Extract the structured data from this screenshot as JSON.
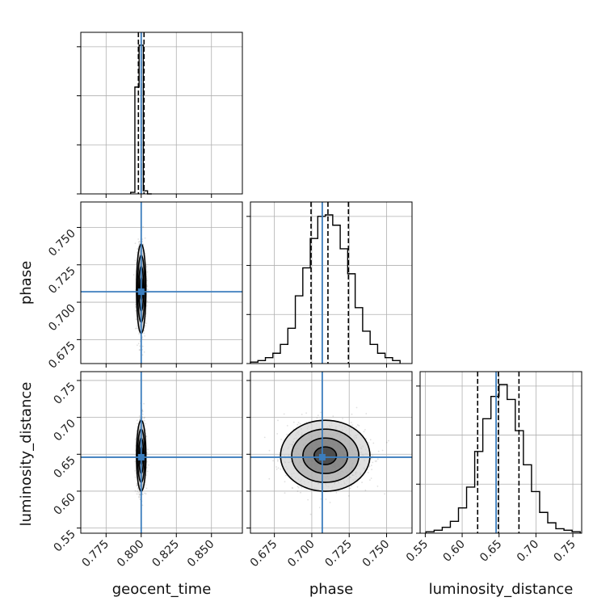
{
  "chart_data": {
    "type": "scatter",
    "parameters": [
      "geocent_time",
      "phase",
      "luminosity_distance"
    ],
    "axis_labels": {
      "geocent_time": "geocent_time",
      "phase": "phase",
      "luminosity_distance": "luminosity_distance"
    },
    "ranges": {
      "geocent_time": [
        0.757,
        0.872
      ],
      "phase": [
        0.659,
        0.767
      ],
      "luminosity_distance": [
        0.543,
        0.762
      ]
    },
    "ticks": {
      "geocent_time": [
        0.775,
        0.8,
        0.825,
        0.85
      ],
      "phase": [
        0.675,
        0.7,
        0.725,
        0.75
      ],
      "luminosity_distance": [
        0.55,
        0.6,
        0.65,
        0.7,
        0.75
      ]
    },
    "tick_labels": {
      "geocent_time": [
        "0.775",
        "0.800",
        "0.825",
        "0.850"
      ],
      "phase": [
        "0.675",
        "0.700",
        "0.725",
        "0.750"
      ],
      "luminosity_distance": [
        "0.55",
        "0.60",
        "0.65",
        "0.70",
        "0.75"
      ]
    },
    "truths": {
      "geocent_time": 0.8,
      "phase": 0.707,
      "luminosity_distance": 0.646
    },
    "quantiles": {
      "geocent_time": [
        0.798,
        0.8,
        0.802
      ],
      "phase": [
        0.6995,
        0.7108,
        0.7245
      ],
      "luminosity_distance": [
        0.621,
        0.649,
        0.677
      ]
    },
    "histograms": {
      "geocent_time": {
        "edges": [
          0.7925,
          0.7955,
          0.7985,
          0.8015,
          0.8045,
          0.8075
        ],
        "counts": [
          0.01,
          0.69,
          0.96,
          0.02,
          0.0
        ]
      },
      "phase": {
        "edges": [
          0.659,
          0.664,
          0.669,
          0.674,
          0.679,
          0.684,
          0.689,
          0.694,
          0.699,
          0.704,
          0.709,
          0.714,
          0.719,
          0.724,
          0.729,
          0.734,
          0.739,
          0.744,
          0.749,
          0.754,
          0.759
        ],
        "counts": [
          0.01,
          0.02,
          0.04,
          0.07,
          0.13,
          0.24,
          0.46,
          0.65,
          0.85,
          1.0,
          1.01,
          0.94,
          0.78,
          0.61,
          0.38,
          0.22,
          0.13,
          0.07,
          0.04,
          0.02
        ]
      },
      "luminosity_distance": {
        "edges": [
          0.551,
          0.562,
          0.573,
          0.584,
          0.595,
          0.606,
          0.617,
          0.628,
          0.639,
          0.65,
          0.661,
          0.672,
          0.683,
          0.694,
          0.705,
          0.716,
          0.727,
          0.738,
          0.749,
          0.76
        ],
        "counts": [
          0.01,
          0.02,
          0.04,
          0.08,
          0.17,
          0.31,
          0.55,
          0.77,
          0.92,
          1.0,
          0.9,
          0.69,
          0.46,
          0.28,
          0.14,
          0.07,
          0.03,
          0.02,
          0.01
        ]
      }
    },
    "two_d": [
      {
        "x": "geocent_time",
        "y": "phase",
        "center": [
          0.8,
          0.709
        ],
        "sigma": [
          0.0013,
          0.0115
        ],
        "contour_levels_sigma": [
          0.5,
          1.0,
          1.5,
          2.0
        ]
      },
      {
        "x": "geocent_time",
        "y": "luminosity_distance",
        "center": [
          0.8,
          0.648
        ],
        "sigma": [
          0.0013,
          0.0185
        ],
        "contour_levels_sigma": [
          0.5,
          1.0,
          1.5,
          2.0
        ]
      },
      {
        "x": "phase",
        "y": "luminosity_distance",
        "center": [
          0.709,
          0.648
        ],
        "sigma": [
          0.0115,
          0.0185
        ],
        "contour_levels_sigma": [
          0.5,
          1.0,
          1.5,
          2.0
        ]
      }
    ],
    "grid": true,
    "legend": "none",
    "colors": {
      "truth": "#3b7dbd",
      "histogram": "#000000",
      "contours": "#000000",
      "samples": "#555555"
    }
  }
}
